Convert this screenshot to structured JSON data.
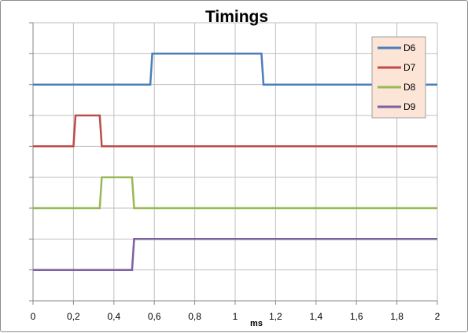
{
  "chart_data": {
    "type": "line",
    "title": "Timings",
    "xlabel": "ms",
    "ylabel": "",
    "xlim": [
      0,
      2
    ],
    "ylim": [
      0,
      9
    ],
    "x_ticks": [
      "0",
      "0,2",
      "0,4",
      "0,6",
      "0,8",
      "1",
      "1,2",
      "1,4",
      "1,6",
      "1,8",
      "2"
    ],
    "grid": true,
    "legend_position": "top-right",
    "series": [
      {
        "name": "D6",
        "color": "#4a7ebb",
        "points": [
          [
            0,
            7
          ],
          [
            0.58,
            7
          ],
          [
            0.59,
            8
          ],
          [
            1.13,
            8
          ],
          [
            1.14,
            7
          ],
          [
            2,
            7
          ]
        ]
      },
      {
        "name": "D7",
        "color": "#be4b48",
        "points": [
          [
            0,
            5
          ],
          [
            0.2,
            5
          ],
          [
            0.21,
            6
          ],
          [
            0.33,
            6
          ],
          [
            0.34,
            5
          ],
          [
            2,
            5
          ]
        ]
      },
      {
        "name": "D8",
        "color": "#98b954",
        "points": [
          [
            0,
            3
          ],
          [
            0.33,
            3
          ],
          [
            0.34,
            4
          ],
          [
            0.49,
            4
          ],
          [
            0.5,
            3
          ],
          [
            2,
            3
          ]
        ]
      },
      {
        "name": "D9",
        "color": "#7d60a0",
        "points": [
          [
            0,
            1
          ],
          [
            0.49,
            1
          ],
          [
            0.5,
            2
          ],
          [
            2,
            2
          ]
        ]
      }
    ]
  }
}
